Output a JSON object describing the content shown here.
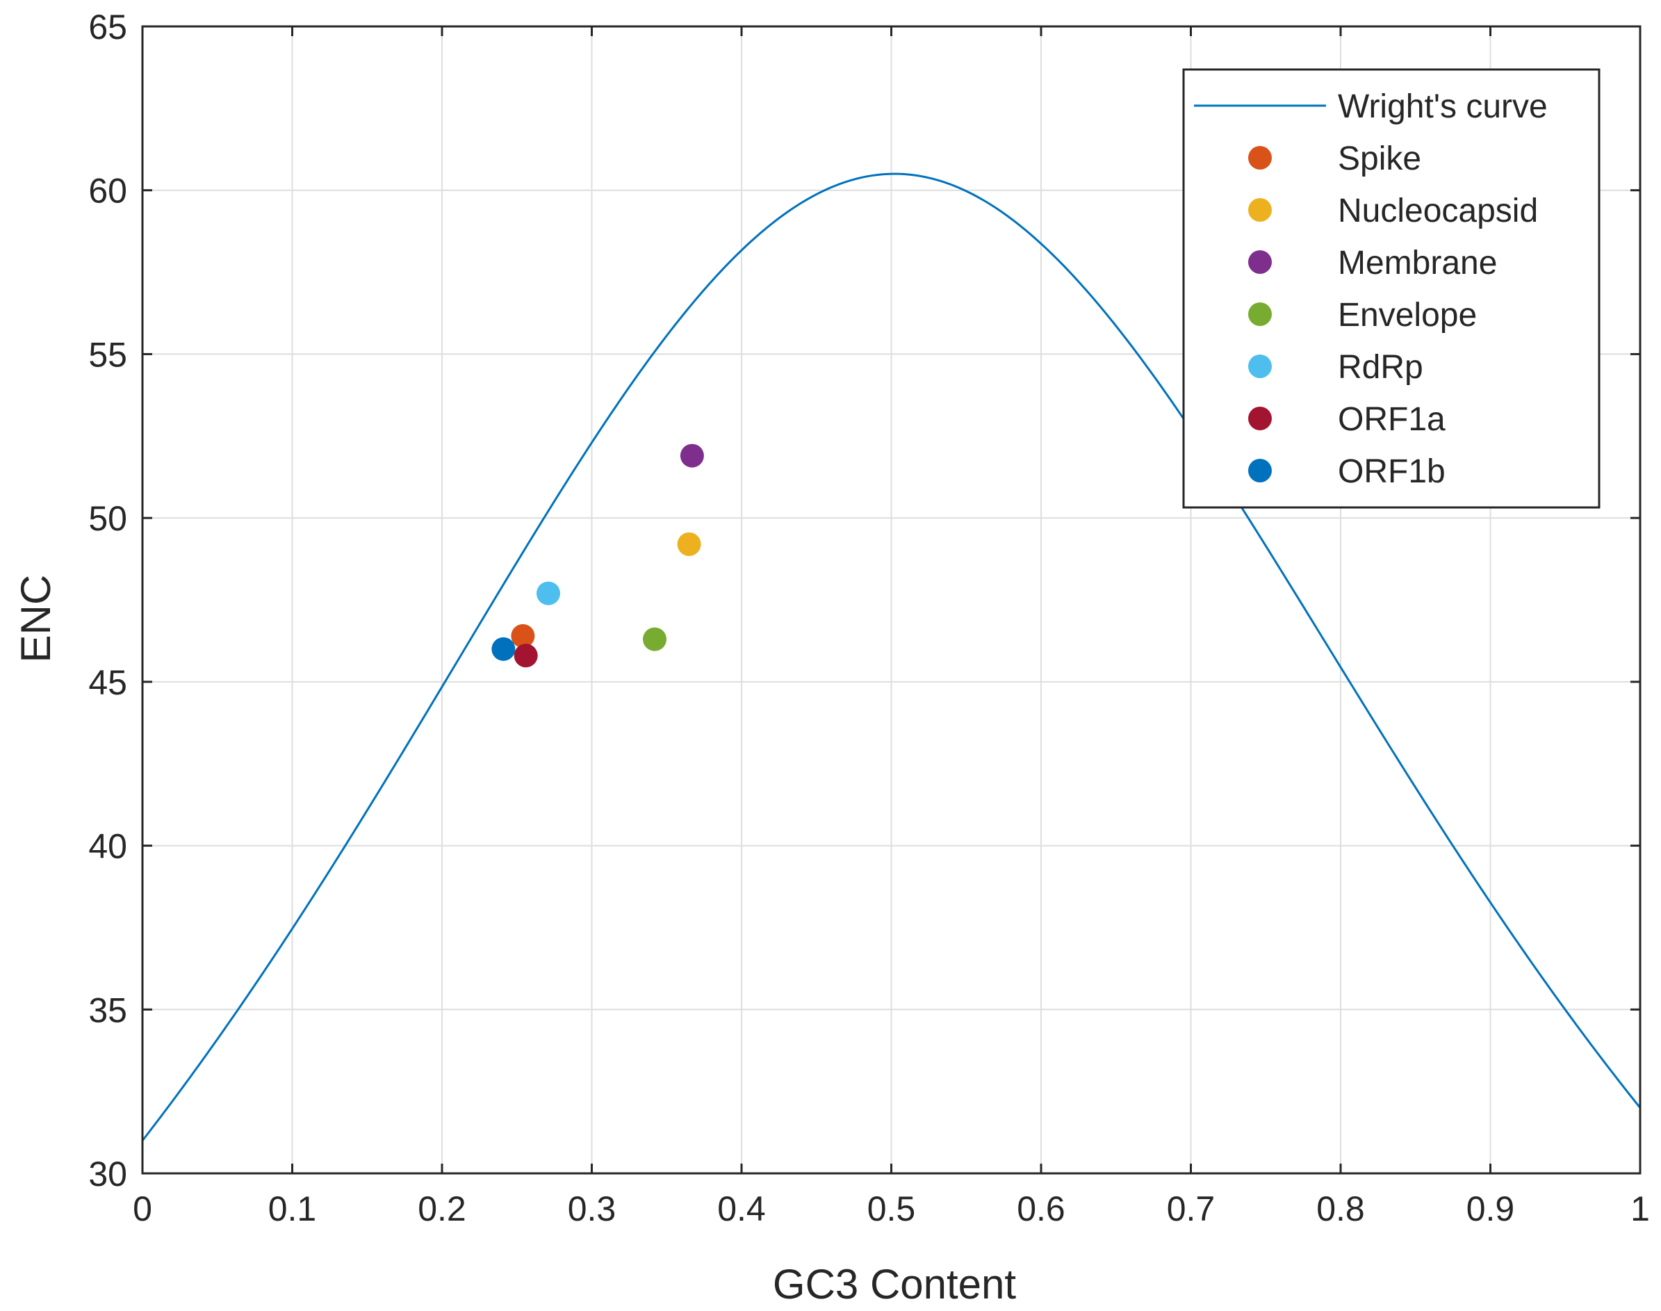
{
  "chart_data": {
    "type": "scatter",
    "xlabel": "GC3 Content",
    "ylabel": "ENC",
    "xlim": [
      0,
      1
    ],
    "ylim": [
      30,
      65
    ],
    "xticks": [
      0,
      0.1,
      0.2,
      0.3,
      0.4,
      0.5,
      0.6,
      0.7,
      0.8,
      0.9,
      1
    ],
    "xtick_labels": [
      "0",
      "0.1",
      "0.2",
      "0.3",
      "0.4",
      "0.5",
      "0.6",
      "0.7",
      "0.8",
      "0.9",
      "1"
    ],
    "yticks": [
      30,
      35,
      40,
      45,
      50,
      55,
      60,
      65
    ],
    "ytick_labels": [
      "30",
      "35",
      "40",
      "45",
      "50",
      "55",
      "60",
      "65"
    ],
    "grid": true,
    "legend_position": "top-right",
    "curve": {
      "name": "Wright's curve",
      "color": "#0072BD",
      "formula": "2 + s + 29 / (s^2 + (1 - s)^2)"
    },
    "series": [
      {
        "name": "Spike",
        "color": "#D95319",
        "x": 0.254,
        "y": 46.4
      },
      {
        "name": "Nucleocapsid",
        "color": "#EDB120",
        "x": 0.365,
        "y": 49.2
      },
      {
        "name": "Membrane",
        "color": "#7E2F8E",
        "x": 0.367,
        "y": 51.9
      },
      {
        "name": "Envelope",
        "color": "#77AC30",
        "x": 0.342,
        "y": 46.3
      },
      {
        "name": "RdRp",
        "color": "#4DBEEE",
        "x": 0.271,
        "y": 47.7
      },
      {
        "name": "ORF1a",
        "color": "#A2142F",
        "x": 0.256,
        "y": 45.8
      },
      {
        "name": "ORF1b",
        "color": "#0072BD",
        "x": 0.241,
        "y": 46.0
      }
    ]
  }
}
